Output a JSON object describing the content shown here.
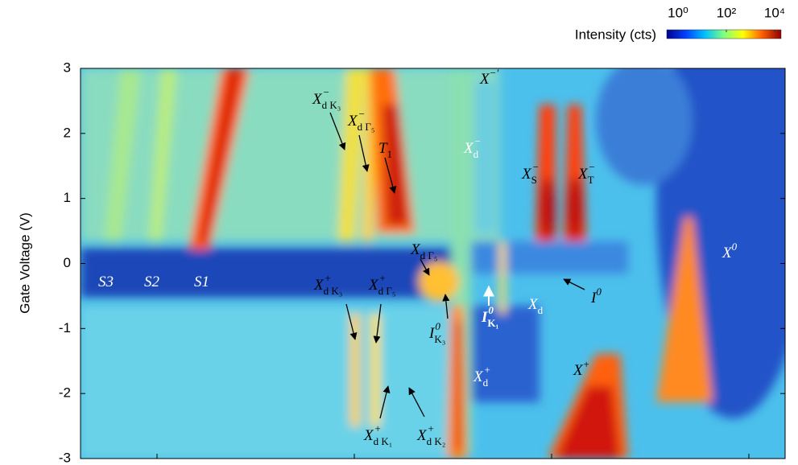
{
  "chart_data": {
    "type": "heatmap",
    "ylabel": "Gate Voltage (V)",
    "ylim": [
      -3,
      3
    ],
    "yticks": [
      3,
      2,
      1,
      0,
      -1,
      -2,
      -3
    ],
    "colorbar": {
      "label": "Intensity (cts)",
      "log": true,
      "lim": [
        1,
        10000
      ],
      "ticks": [
        {
          "value": 1,
          "label": "10⁰"
        },
        {
          "value": 100,
          "label": "10²"
        },
        {
          "value": 10000,
          "label": "10⁴"
        }
      ],
      "colors": [
        "#00008f",
        "#0040ff",
        "#00c0ff",
        "#80ff80",
        "#ffff00",
        "#ff6000",
        "#8f0000"
      ]
    },
    "annotations": [
      {
        "base": "X",
        "sup": "−",
        "sub": "d K₃"
      },
      {
        "base": "X",
        "sup": "−",
        "sub": "d Γ₅"
      },
      {
        "base": "T",
        "sub": "1"
      },
      {
        "base": "X",
        "sup": "−′"
      },
      {
        "base": "X",
        "sup": "−",
        "sub": "d"
      },
      {
        "base": "X",
        "sup": "−",
        "sub": "S"
      },
      {
        "base": "X",
        "sup": "−",
        "sub": "T"
      },
      {
        "base": "X",
        "sub": "d Γ₅"
      },
      {
        "base": "S3"
      },
      {
        "base": "S2"
      },
      {
        "base": "S1"
      },
      {
        "base": "X",
        "sup": "+",
        "sub": "d K₃"
      },
      {
        "base": "X",
        "sup": "+",
        "sub": "d Γ₅"
      },
      {
        "base": "I",
        "sup": "0",
        "sub": "K₃"
      },
      {
        "base": "I",
        "sup": "0",
        "sub": "K₁"
      },
      {
        "base": "X",
        "sub": "d"
      },
      {
        "base": "I",
        "sup": "0"
      },
      {
        "base": "X",
        "sup": "0"
      },
      {
        "base": "X",
        "sup": "+",
        "sub": "d"
      },
      {
        "base": "X",
        "sup": "+"
      },
      {
        "base": "X",
        "sup": "+",
        "sub": "d K₁"
      },
      {
        "base": "X",
        "sup": "+",
        "sub": "d K₂"
      }
    ]
  }
}
